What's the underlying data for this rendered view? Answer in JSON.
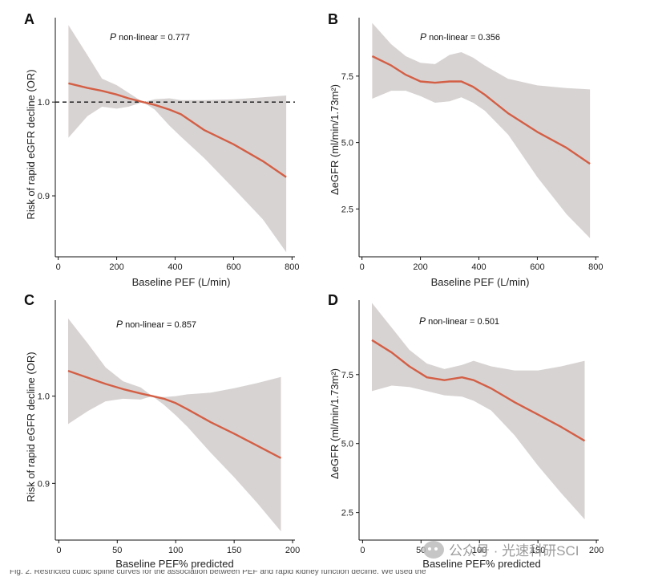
{
  "chart_data": [
    {
      "panel": "A",
      "type": "line",
      "annotation": {
        "p": "P",
        "text": " non-linear = 0.777"
      },
      "xlabel": "Baseline PEF (L/min)",
      "ylabel": "Risk of rapid eGFR decline (OR)",
      "xlim": [
        -10,
        810
      ],
      "ylim": [
        0.835,
        1.09
      ],
      "xticks": [
        0,
        200,
        400,
        600,
        800
      ],
      "yticks": [
        0.9,
        1.0
      ],
      "ytick_labels": [
        "0.9",
        "1.0"
      ],
      "reference_line": 1.0,
      "x": [
        35,
        100,
        150,
        200,
        240,
        290,
        330,
        380,
        420,
        500,
        600,
        700,
        780
      ],
      "y": [
        1.02,
        1.015,
        1.012,
        1.008,
        1.004,
        1.0,
        0.997,
        0.992,
        0.987,
        0.97,
        0.955,
        0.937,
        0.92
      ],
      "ci_upper": [
        1.082,
        1.05,
        1.025,
        1.018,
        1.01,
        1.0,
        1.003,
        1.004,
        1.002,
        1.002,
        1.003,
        1.005,
        1.007
      ],
      "ci_lower": [
        0.962,
        0.985,
        0.995,
        0.993,
        0.995,
        1.0,
        0.992,
        0.975,
        0.963,
        0.94,
        0.908,
        0.875,
        0.84
      ],
      "line_color": "#d35f45",
      "band_color": "#d8d3d3"
    },
    {
      "panel": "B",
      "type": "line",
      "annotation": {
        "p": "P",
        "text": " non-linear = 0.356"
      },
      "xlabel": "Baseline PEF (L/min)",
      "ylabel": "ΔeGFR (ml/min/1.73m²)",
      "xlim": [
        -10,
        810
      ],
      "ylim": [
        0.7,
        9.7
      ],
      "xticks": [
        0,
        200,
        400,
        600,
        800
      ],
      "yticks": [
        2.5,
        5.0,
        7.5
      ],
      "ytick_labels": [
        "2.5",
        "5.0",
        "7.5"
      ],
      "x": [
        35,
        100,
        150,
        200,
        250,
        300,
        340,
        380,
        420,
        500,
        600,
        700,
        780
      ],
      "y": [
        8.25,
        7.9,
        7.55,
        7.3,
        7.25,
        7.3,
        7.3,
        7.1,
        6.8,
        6.1,
        5.4,
        4.8,
        4.2
      ],
      "ci_upper": [
        9.5,
        8.7,
        8.25,
        8.0,
        7.95,
        8.3,
        8.4,
        8.2,
        7.9,
        7.4,
        7.15,
        7.05,
        7.0
      ],
      "ci_lower": [
        6.65,
        6.95,
        6.95,
        6.75,
        6.5,
        6.55,
        6.7,
        6.5,
        6.2,
        5.3,
        3.7,
        2.3,
        1.4
      ],
      "line_color": "#d35f45",
      "band_color": "#d8d3d3"
    },
    {
      "panel": "C",
      "type": "line",
      "annotation": {
        "p": "P",
        "text": " non-linear = 0.857"
      },
      "xlabel": "Baseline PEF% predicted",
      "ylabel": "Risk of rapid eGFR decline (OR)",
      "xlim": [
        -3,
        202
      ],
      "ylim": [
        0.835,
        1.11
      ],
      "xticks": [
        0,
        50,
        100,
        150,
        200
      ],
      "yticks": [
        0.9,
        1.0
      ],
      "ytick_labels": [
        "0.9",
        "1.0"
      ],
      "x": [
        8,
        25,
        40,
        55,
        70,
        80,
        90,
        100,
        110,
        130,
        150,
        170,
        190
      ],
      "y": [
        1.029,
        1.021,
        1.014,
        1.008,
        1.003,
        1.0,
        0.997,
        0.992,
        0.985,
        0.97,
        0.957,
        0.943,
        0.929
      ],
      "ci_upper": [
        1.089,
        1.06,
        1.033,
        1.017,
        1.01,
        1.0,
        0.999,
        1.0,
        1.002,
        1.004,
        1.009,
        1.015,
        1.022
      ],
      "ci_lower": [
        0.968,
        0.983,
        0.994,
        0.997,
        0.996,
        1.0,
        0.99,
        0.978,
        0.965,
        0.935,
        0.907,
        0.877,
        0.845
      ],
      "line_color": "#d35f45",
      "band_color": "#d8d3d3"
    },
    {
      "panel": "D",
      "type": "line",
      "annotation": {
        "p": "P",
        "text": " non-linear = 0.501"
      },
      "xlabel": "Baseline PEF% predicted",
      "ylabel": "ΔeGFR (ml/min/1.73m²)",
      "xlim": [
        -3,
        202
      ],
      "ylim": [
        1.5,
        10.2
      ],
      "xticks": [
        0,
        50,
        100,
        150,
        200
      ],
      "ytick_labels": [
        "2.5",
        "5.0",
        "7.5"
      ],
      "yticks": [
        2.5,
        5.0,
        7.5
      ],
      "x": [
        8,
        25,
        40,
        55,
        70,
        85,
        95,
        110,
        130,
        150,
        170,
        190
      ],
      "y": [
        8.75,
        8.3,
        7.8,
        7.4,
        7.3,
        7.4,
        7.3,
        7.0,
        6.5,
        6.05,
        5.6,
        5.1
      ],
      "ci_upper": [
        10.1,
        9.2,
        8.4,
        7.9,
        7.7,
        7.85,
        8.0,
        7.8,
        7.65,
        7.65,
        7.8,
        8.0
      ],
      "ci_lower": [
        6.9,
        7.1,
        7.05,
        6.9,
        6.75,
        6.7,
        6.55,
        6.2,
        5.3,
        4.2,
        3.2,
        2.25
      ],
      "line_color": "#d35f45",
      "band_color": "#d8d3d3"
    }
  ],
  "watermark": "公众号 · 光速科研SCI",
  "caption_fragment": "Fig. 2. Restricted cubic spline curves for the association between PEF and rapid kidney function decline. We used the"
}
